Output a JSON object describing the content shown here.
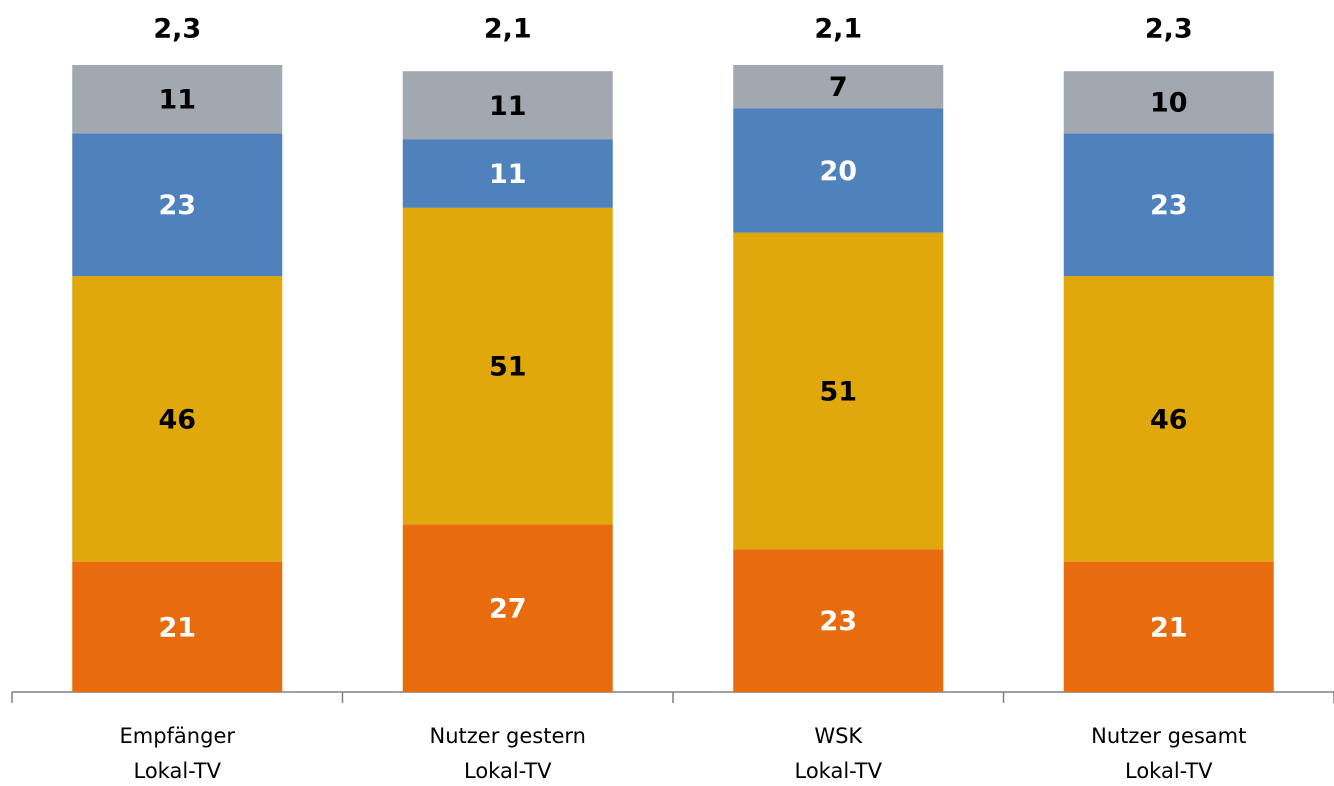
{
  "chart_data": {
    "type": "stacked_bar",
    "categories": [
      [
        "Empfänger",
        "Lokal-TV"
      ],
      [
        "Nutzer gestern",
        "Lokal-TV"
      ],
      [
        "WSK",
        "Lokal-TV"
      ],
      [
        "Nutzer gesamt",
        "Lokal-TV"
      ]
    ],
    "annotations": [
      "2,3",
      "2,1",
      "2,1",
      "2,3"
    ],
    "series": [
      {
        "color": "#e86c0e",
        "label_color": "#ffffff",
        "values": [
          21,
          27,
          23,
          21
        ]
      },
      {
        "color": "#e0a80b",
        "label_color": "#000000",
        "values": [
          46,
          51,
          51,
          46
        ]
      },
      {
        "color": "#4f81bd",
        "label_color": "#ffffff",
        "values": [
          23,
          11,
          20,
          23
        ]
      },
      {
        "color": "#a1a8b0",
        "label_color": "#000000",
        "values": [
          11,
          11,
          7,
          10
        ]
      }
    ]
  }
}
